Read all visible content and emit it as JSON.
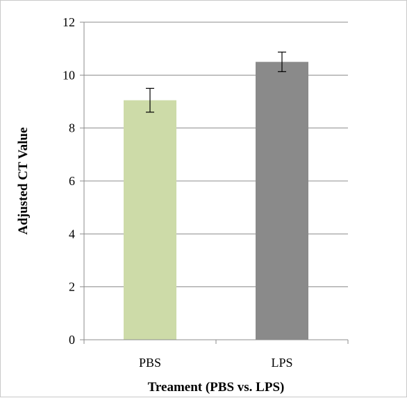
{
  "chart_data": {
    "type": "bar",
    "categories": [
      "PBS",
      "LPS"
    ],
    "series": [
      {
        "values": [
          9.05,
          10.5
        ],
        "errors": [
          0.45,
          0.37
        ],
        "colors": [
          "#cddba8",
          "#8a8a8a"
        ]
      }
    ],
    "xlabel": "Treament (PBS vs. LPS)",
    "ylabel": "Adjusted CT Value",
    "ylim": [
      0,
      12
    ],
    "yticks": [
      0,
      2,
      4,
      6,
      8,
      10,
      12
    ],
    "grid": true,
    "legend": "none"
  }
}
